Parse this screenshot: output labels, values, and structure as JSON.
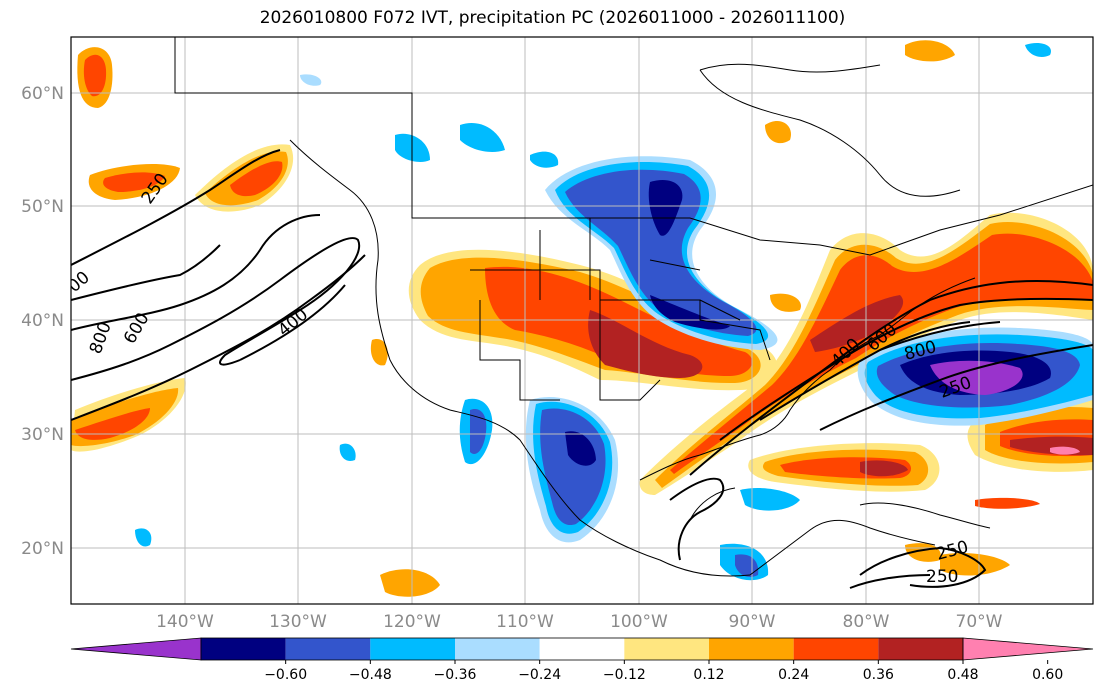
{
  "title": "2026010800 F072 IVT, precipitation PC (2026011000 - 2026011100)",
  "lat_labels": [
    "60°N",
    "50°N",
    "40°N",
    "30°N",
    "20°N"
  ],
  "lon_labels": [
    "140°W",
    "130°W",
    "120°W",
    "110°W",
    "100°W",
    "90°W",
    "80°W",
    "70°W"
  ],
  "contour_labels": [
    "250",
    "400",
    "600",
    "800",
    "00",
    "400",
    "600",
    "800",
    "250",
    "250",
    "250"
  ],
  "colorbar": {
    "ticks": [
      "−0.60",
      "−0.48",
      "−0.36",
      "−0.24",
      "−0.12",
      "0.12",
      "0.24",
      "0.36",
      "0.48",
      "0.60"
    ],
    "colors": [
      "#9933cc",
      "#000080",
      "#3355cc",
      "#00bbff",
      "#aaddff",
      "#ffffff",
      "#ffe680",
      "#ffa500",
      "#ff4500",
      "#b22222",
      "#ff80b0"
    ]
  }
}
